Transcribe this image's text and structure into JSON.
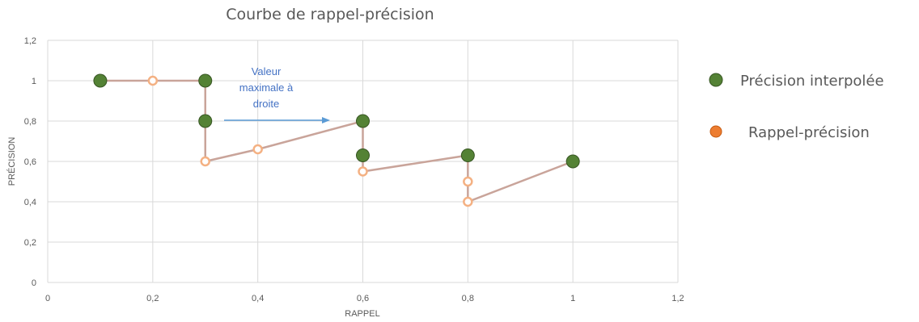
{
  "chart_data": {
    "type": "scatter",
    "title": "Courbe de rappel-précision",
    "xlabel": "RAPPEL",
    "ylabel": "PRÉCISION",
    "xlim": [
      0,
      1.2
    ],
    "ylim": [
      0,
      1.2
    ],
    "x_ticks": [
      "0",
      "0,2",
      "0,4",
      "0,6",
      "0,8",
      "1",
      "1,2"
    ],
    "y_ticks": [
      "0",
      "0,2",
      "0,4",
      "0,6",
      "0,8",
      "1",
      "1,2"
    ],
    "grid": true,
    "legend_position": "right",
    "annotation": {
      "lines": [
        "Valeur",
        "maximale à",
        "droite"
      ]
    },
    "series": [
      {
        "name": "Précision interpolée",
        "color": "#548235",
        "marker": "filled-circle",
        "line": false,
        "points": [
          [
            0.1,
            1.0
          ],
          [
            0.3,
            1.0
          ],
          [
            0.3,
            0.8
          ],
          [
            0.6,
            0.8
          ],
          [
            0.6,
            0.63
          ],
          [
            0.8,
            0.63
          ],
          [
            1.0,
            0.6
          ]
        ]
      },
      {
        "name": "Rappel-précision",
        "color": "#ed7d31",
        "line_color": "#c9a49a",
        "marker": "hollow-circle",
        "line": true,
        "points": [
          [
            0.1,
            1.0
          ],
          [
            0.2,
            1.0
          ],
          [
            0.3,
            1.0
          ],
          [
            0.3,
            0.6
          ],
          [
            0.4,
            0.66
          ],
          [
            0.6,
            0.8
          ],
          [
            0.6,
            0.55
          ],
          [
            0.8,
            0.63
          ],
          [
            0.8,
            0.5
          ],
          [
            0.8,
            0.4
          ],
          [
            1.0,
            0.6
          ]
        ]
      }
    ]
  }
}
